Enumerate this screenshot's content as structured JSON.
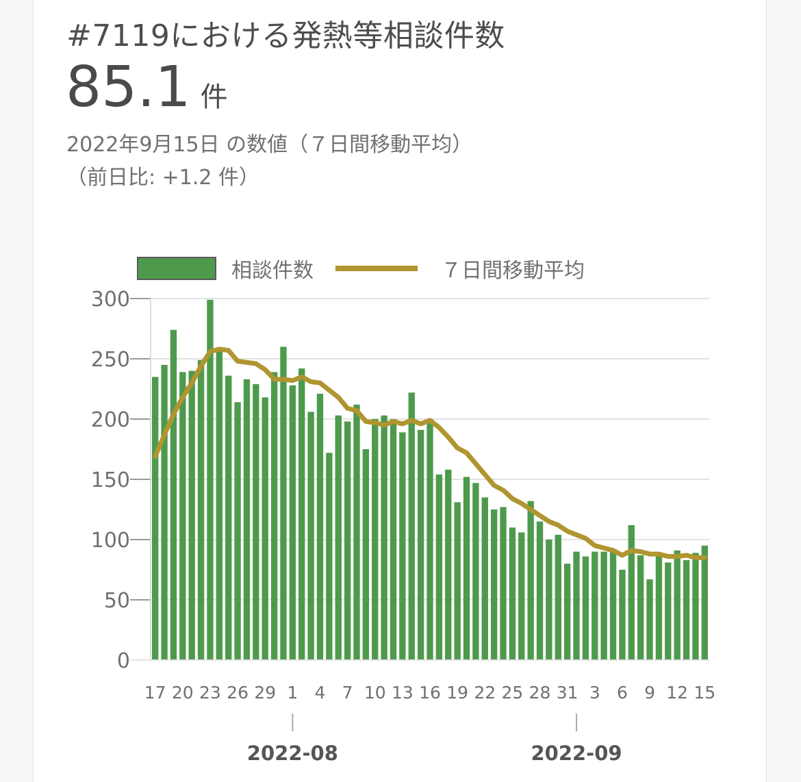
{
  "header": {
    "title": "#7119における発熱等相談件数",
    "value": "85.1",
    "unit": "件",
    "date_note": "2022年9月15日 の数値（７日間移動平均）",
    "diff_note": "（前日比: +1.2 件）"
  },
  "legend": {
    "bar_label": "相談件数",
    "line_label": "７日間移動平均"
  },
  "colors": {
    "bar": "#4e9a4d",
    "line": "#b09530",
    "grid": "#e3e3e3",
    "axis": "#999999"
  },
  "chart_data": {
    "type": "bar",
    "title": "#7119における発熱等相談件数",
    "ylim": [
      0,
      300
    ],
    "y_ticks": [
      "0",
      "50",
      "100",
      "150",
      "200",
      "250",
      "300"
    ],
    "x_tick_labels": [
      "17",
      "20",
      "23",
      "26",
      "29",
      "1",
      "4",
      "7",
      "10",
      "13",
      "16",
      "19",
      "22",
      "25",
      "28",
      "31",
      "3",
      "6",
      "9",
      "12",
      "15"
    ],
    "month_labels": [
      "2022-08",
      "2022-09"
    ],
    "grid": true,
    "legend_position": "top",
    "dates": [
      "2022-07-17",
      "2022-07-18",
      "2022-07-19",
      "2022-07-20",
      "2022-07-21",
      "2022-07-22",
      "2022-07-23",
      "2022-07-24",
      "2022-07-25",
      "2022-07-26",
      "2022-07-27",
      "2022-07-28",
      "2022-07-29",
      "2022-07-30",
      "2022-07-31",
      "2022-08-01",
      "2022-08-02",
      "2022-08-03",
      "2022-08-04",
      "2022-08-05",
      "2022-08-06",
      "2022-08-07",
      "2022-08-08",
      "2022-08-09",
      "2022-08-10",
      "2022-08-11",
      "2022-08-12",
      "2022-08-13",
      "2022-08-14",
      "2022-08-15",
      "2022-08-16",
      "2022-08-17",
      "2022-08-18",
      "2022-08-19",
      "2022-08-20",
      "2022-08-21",
      "2022-08-22",
      "2022-08-23",
      "2022-08-24",
      "2022-08-25",
      "2022-08-26",
      "2022-08-27",
      "2022-08-28",
      "2022-08-29",
      "2022-08-30",
      "2022-08-31",
      "2022-09-01",
      "2022-09-02",
      "2022-09-03",
      "2022-09-04",
      "2022-09-05",
      "2022-09-06",
      "2022-09-07",
      "2022-09-08",
      "2022-09-09",
      "2022-09-10",
      "2022-09-11",
      "2022-09-12",
      "2022-09-13",
      "2022-09-14",
      "2022-09-15"
    ],
    "series": [
      {
        "name": "相談件数",
        "type": "bar",
        "values": [
          235,
          245,
          274,
          239,
          240,
          249,
          299,
          256,
          236,
          214,
          233,
          229,
          218,
          239,
          260,
          228,
          242,
          206,
          221,
          172,
          203,
          198,
          212,
          175,
          200,
          203,
          200,
          189,
          222,
          191,
          200,
          154,
          158,
          131,
          152,
          147,
          135,
          125,
          127,
          110,
          106,
          132,
          115,
          100,
          104,
          80,
          90,
          86,
          90,
          90,
          92,
          75,
          112,
          87,
          67,
          89,
          81,
          91,
          83,
          89,
          95
        ]
      },
      {
        "name": "７日間移動平均",
        "type": "line",
        "values": [
          169,
          187,
          204,
          218,
          230,
          244,
          256,
          258,
          257,
          248,
          247,
          246,
          241,
          233,
          233,
          232,
          235,
          231,
          230,
          224,
          218,
          209,
          207,
          198,
          197,
          195,
          198,
          196,
          199,
          196,
          199,
          193,
          185,
          176,
          172,
          163,
          154,
          145,
          141,
          134,
          130,
          125,
          120,
          115,
          112,
          107,
          104,
          101,
          95,
          93,
          91,
          87,
          91,
          90,
          88,
          88,
          86,
          86,
          87,
          85,
          85
        ]
      }
    ]
  }
}
